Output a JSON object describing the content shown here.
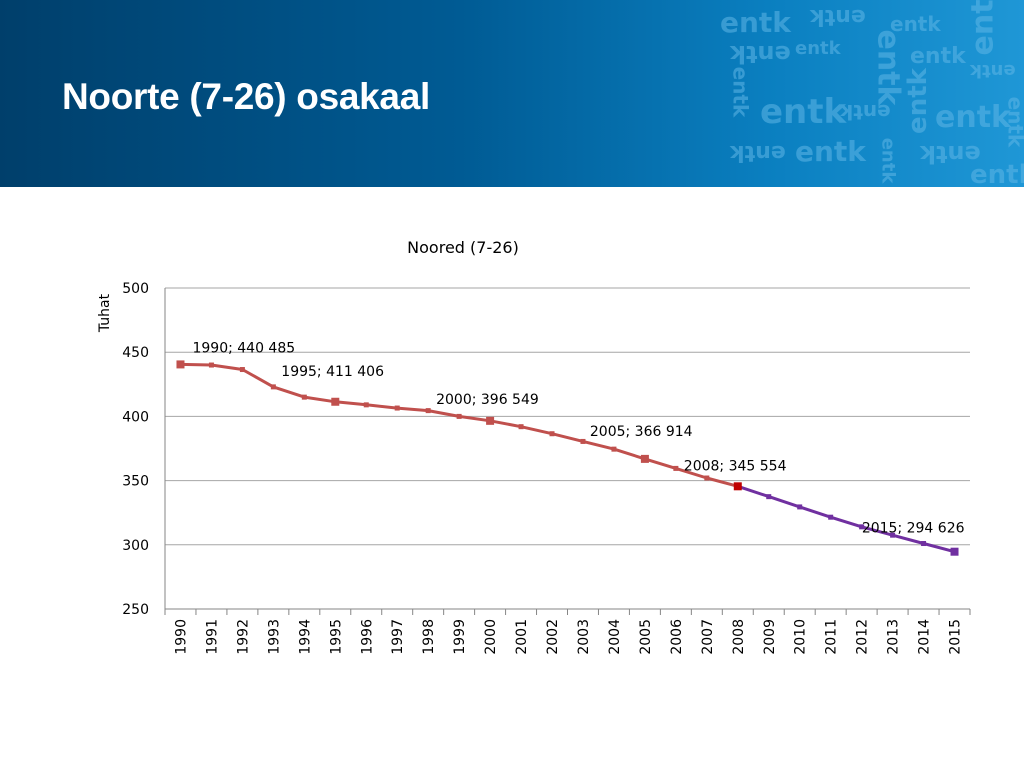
{
  "slide": {
    "title": "Noorte (7-26) osakaal",
    "logo_text": "entk"
  },
  "colors": {
    "header_dark": "#003f6b",
    "header_light": "#1f97d6",
    "series_1990_2008": "#c0504d",
    "series_2008_marker": "#c00000",
    "series_2008_2015": "#7030a0",
    "grid": "#a6a6a6"
  },
  "chart_data": {
    "type": "line",
    "title": "Noored (7-26)",
    "ylabel": "Tuhat",
    "xlabel": "",
    "ylim": [
      250,
      500
    ],
    "yticks": [
      250,
      300,
      350,
      400,
      450,
      500
    ],
    "grid": true,
    "legend": "none",
    "x": [
      1990,
      1991,
      1992,
      1993,
      1994,
      1995,
      1996,
      1997,
      1998,
      1999,
      2000,
      2001,
      2002,
      2003,
      2004,
      2005,
      2006,
      2007,
      2008,
      2009,
      2010,
      2011,
      2012,
      2013,
      2014,
      2015
    ],
    "series": [
      {
        "values": [
          440.485,
          440,
          436.5,
          423,
          415,
          411.406,
          409,
          406.5,
          404.5,
          400,
          396.549,
          392,
          386.5,
          380.5,
          374.5,
          366.914,
          359.5,
          352,
          345.554,
          337.5,
          329.5,
          321.5,
          314,
          307.5,
          301,
          294.626
        ],
        "segments": [
          {
            "from": 1990,
            "to": 2008,
            "color": "#c0504d"
          },
          {
            "from": 2008,
            "to": 2015,
            "color": "#7030a0"
          }
        ]
      }
    ],
    "annotations": [
      {
        "x": 1990,
        "y": 440.485,
        "text": "1990; 440 485"
      },
      {
        "x": 1995,
        "y": 411.406,
        "text": "1995; 411 406"
      },
      {
        "x": 2000,
        "y": 396.549,
        "text": "2000; 396 549"
      },
      {
        "x": 2005,
        "y": 366.914,
        "text": "2005; 366 914"
      },
      {
        "x": 2008,
        "y": 345.554,
        "text": "2008; 345 554"
      },
      {
        "x": 2015,
        "y": 294.626,
        "text": "2015; 294 626"
      }
    ]
  }
}
